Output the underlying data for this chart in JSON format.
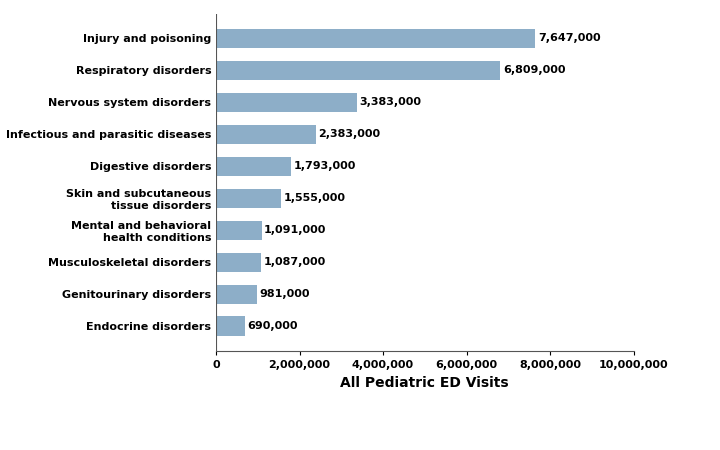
{
  "categories": [
    "Endocrine disorders",
    "Genitourinary disorders",
    "Musculoskeletal disorders",
    "Mental and behavioral\nhealth conditions",
    "Skin and subcutaneous\ntissue disorders",
    "Digestive disorders",
    "Infectious and parasitic diseases",
    "Nervous system disorders",
    "Respiratory disorders",
    "Injury and poisoning"
  ],
  "values": [
    690000,
    981000,
    1087000,
    1091000,
    1555000,
    1793000,
    2383000,
    3383000,
    6809000,
    7647000
  ],
  "bar_color": "#8daec8",
  "xlabel": "All Pediatric ED Visits",
  "xlim": [
    0,
    10000000
  ],
  "xticks": [
    0,
    2000000,
    4000000,
    6000000,
    8000000,
    10000000
  ],
  "xtick_labels": [
    "0",
    "2,000,000",
    "4,000,000",
    "6,000,000",
    "8,000,000",
    "10,000,000"
  ],
  "value_labels": [
    "690,000",
    "981,000",
    "1,087,000",
    "1,091,000",
    "1,555,000",
    "1,793,000",
    "2,383,000",
    "3,383,000",
    "6,809,000",
    "7,647,000"
  ],
  "bar_height": 0.6,
  "label_fontsize": 8,
  "axis_label_fontsize": 10,
  "tick_fontsize": 8,
  "ytick_fontsize": 8,
  "background_color": "#ffffff"
}
